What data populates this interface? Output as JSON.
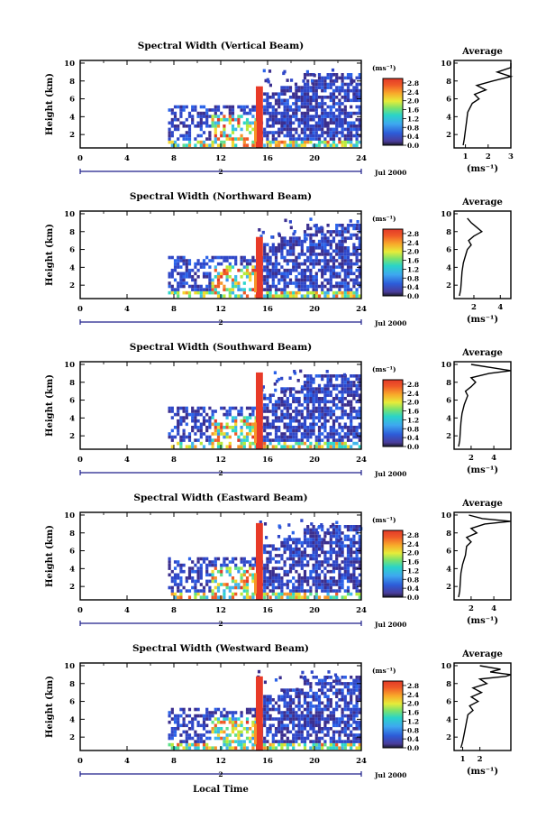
{
  "figure": {
    "bottom_label": "Local Time",
    "colorbar_unit": "(ms⁻¹)",
    "colorbar_ticks": [
      "2.8",
      "2.4",
      "2.0",
      "1.6",
      "1.2",
      "0.8",
      "0.4",
      "0.0"
    ],
    "date_label": "Jul 2000",
    "day_label": "2",
    "avg_title": "Average",
    "avg_unit": "(ms⁻¹)"
  },
  "chart_data": [
    {
      "type": "heatmap",
      "title": "Spectral Width (Vertical Beam)",
      "xlabel": "Local Time",
      "ylabel": "Height (km)",
      "xlim": [
        0,
        24
      ],
      "ylim": [
        0.5,
        10.3
      ],
      "x_ticks": [
        0,
        4,
        8,
        12,
        16,
        20,
        24
      ],
      "y_ticks": [
        2,
        4,
        6,
        8,
        10
      ],
      "colorbar": {
        "label": "(ms⁻¹)",
        "range": [
          0,
          3.0
        ],
        "ticks": [
          0.0,
          0.4,
          0.8,
          1.2,
          1.6,
          2.0,
          2.4,
          2.8
        ]
      },
      "data_start_hour": 7.5,
      "convective_event_hours": [
        15.0,
        15.6
      ],
      "average_profile": {
        "xlabel": "(ms⁻¹)",
        "xlim": [
          0.5,
          3
        ],
        "x_ticks": [
          1,
          2,
          3
        ],
        "height": [
          0.8,
          1.5,
          2.5,
          3.5,
          4.5,
          5.5,
          6.0,
          6.5,
          7.0,
          7.5,
          8.0,
          8.5,
          9.0,
          9.5,
          10.0
        ],
        "width": [
          0.9,
          0.95,
          1.0,
          1.05,
          1.1,
          1.3,
          1.6,
          1.4,
          1.9,
          1.5,
          2.2,
          3.0,
          2.4,
          3.0,
          3.0
        ]
      }
    },
    {
      "type": "heatmap",
      "title": "Spectral Width (Northward Beam)",
      "xlabel": "Local Time",
      "ylabel": "Height (km)",
      "xlim": [
        0,
        24
      ],
      "ylim": [
        0.5,
        10.3
      ],
      "x_ticks": [
        0,
        4,
        8,
        12,
        16,
        20,
        24
      ],
      "y_ticks": [
        2,
        4,
        6,
        8,
        10
      ],
      "colorbar": {
        "label": "(ms⁻¹)",
        "range": [
          0,
          3.0
        ],
        "ticks": [
          0.0,
          0.4,
          0.8,
          1.2,
          1.6,
          2.0,
          2.4,
          2.8
        ]
      },
      "data_start_hour": 7.5,
      "convective_event_hours": [
        15.0,
        15.6
      ],
      "average_profile": {
        "xlabel": "(ms⁻¹)",
        "xlim": [
          0.5,
          4.8
        ],
        "x_ticks": [
          2,
          4
        ],
        "height": [
          0.8,
          1.5,
          2.5,
          3.5,
          4.5,
          5.5,
          6.0,
          6.5,
          7.0,
          7.5,
          8.0,
          8.5,
          9.0,
          9.5
        ],
        "width": [
          0.9,
          1.0,
          1.05,
          1.1,
          1.2,
          1.4,
          1.5,
          1.8,
          1.6,
          2.0,
          2.6,
          2.2,
          1.8,
          1.5
        ]
      }
    },
    {
      "type": "heatmap",
      "title": "Spectral Width (Southward Beam)",
      "xlabel": "Local Time",
      "ylabel": "Height (km)",
      "xlim": [
        0,
        24
      ],
      "ylim": [
        0.5,
        10.3
      ],
      "x_ticks": [
        0,
        4,
        8,
        12,
        16,
        20,
        24
      ],
      "y_ticks": [
        2,
        4,
        6,
        8,
        10
      ],
      "colorbar": {
        "label": "(ms⁻¹)",
        "range": [
          0,
          3.0
        ],
        "ticks": [
          0.0,
          0.4,
          0.8,
          1.2,
          1.6,
          2.0,
          2.4,
          2.8
        ]
      },
      "data_start_hour": 7.5,
      "convective_event_hours": [
        15.0,
        15.6
      ],
      "average_profile": {
        "xlabel": "(ms⁻¹)",
        "xlim": [
          0.5,
          5.5
        ],
        "x_ticks": [
          2,
          4
        ],
        "height": [
          0.8,
          1.5,
          2.5,
          3.5,
          4.5,
          5.5,
          6.5,
          7.0,
          7.5,
          8.0,
          8.5,
          9.0,
          9.3,
          9.6,
          10.0
        ],
        "width": [
          0.9,
          1.0,
          1.05,
          1.1,
          1.2,
          1.4,
          1.7,
          1.5,
          2.0,
          2.4,
          2.0,
          3.6,
          5.5,
          4.0,
          2.0
        ]
      }
    },
    {
      "type": "heatmap",
      "title": "Spectral Width (Eastward Beam)",
      "xlabel": "Local Time",
      "ylabel": "Height (km)",
      "xlim": [
        0,
        24
      ],
      "ylim": [
        0.5,
        10.3
      ],
      "x_ticks": [
        0,
        4,
        8,
        12,
        16,
        20,
        24
      ],
      "y_ticks": [
        2,
        4,
        6,
        8,
        10
      ],
      "colorbar": {
        "label": "(ms⁻¹)",
        "range": [
          0,
          3.0
        ],
        "ticks": [
          0.0,
          0.4,
          0.8,
          1.2,
          1.6,
          2.0,
          2.4,
          2.8
        ]
      },
      "data_start_hour": 7.5,
      "convective_event_hours": [
        15.0,
        15.6
      ],
      "average_profile": {
        "xlabel": "(ms⁻¹)",
        "xlim": [
          0.5,
          5.5
        ],
        "x_ticks": [
          2,
          4
        ],
        "height": [
          0.8,
          1.5,
          2.5,
          3.5,
          4.5,
          5.5,
          6.5,
          7.0,
          7.5,
          8.0,
          8.5,
          9.0,
          9.3,
          9.6,
          10.0
        ],
        "width": [
          0.9,
          1.0,
          1.05,
          1.1,
          1.25,
          1.5,
          1.6,
          2.0,
          1.6,
          2.5,
          2.0,
          3.2,
          5.5,
          3.0,
          1.8
        ]
      }
    },
    {
      "type": "heatmap",
      "title": "Spectral Width (Westward Beam)",
      "xlabel": "Local Time",
      "ylabel": "Height (km)",
      "xlim": [
        0,
        24
      ],
      "ylim": [
        0.5,
        10.3
      ],
      "x_ticks": [
        0,
        4,
        8,
        12,
        16,
        20,
        24
      ],
      "y_ticks": [
        2,
        4,
        6,
        8,
        10
      ],
      "colorbar": {
        "label": "(ms⁻¹)",
        "range": [
          0,
          3.0
        ],
        "ticks": [
          0.0,
          0.4,
          0.8,
          1.2,
          1.6,
          2.0,
          2.4,
          2.8
        ]
      },
      "data_start_hour": 7.5,
      "convective_event_hours": [
        15.0,
        15.6
      ],
      "average_profile": {
        "xlabel": "(ms⁻¹)",
        "xlim": [
          0.5,
          3.8
        ],
        "x_ticks": [
          1,
          2
        ],
        "height": [
          0.8,
          1.5,
          2.5,
          3.5,
          4.5,
          5.0,
          5.5,
          6.0,
          6.5,
          7.0,
          7.5,
          8.0,
          8.5,
          8.8,
          9.0,
          9.3,
          9.6,
          10.0
        ],
        "width": [
          0.9,
          1.0,
          1.1,
          1.2,
          1.3,
          1.6,
          1.4,
          1.9,
          1.5,
          2.1,
          1.6,
          2.4,
          2.0,
          3.5,
          3.8,
          2.6,
          3.2,
          2.0
        ]
      }
    }
  ]
}
